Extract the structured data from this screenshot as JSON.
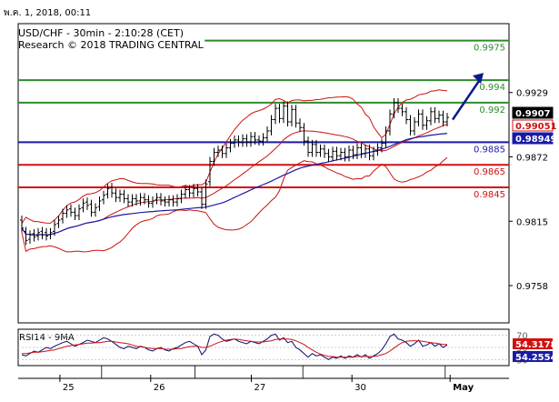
{
  "header": {
    "timestamp": "พ.ค. 1, 2018, 00:11"
  },
  "chart_data": [
    {
      "type": "line",
      "title": "USD/CHF - 30min - 2:10:28 (CET)",
      "subtitle": "Research © 2018 TRADING CENTRAL",
      "ylim": [
        0.9725,
        0.999
      ],
      "y_ticks": [
        "0.9929",
        "0.9872",
        "0.9815",
        "0.9758"
      ],
      "x_ticks": [
        "25",
        "26",
        "27",
        "30",
        "May"
      ],
      "levels": [
        {
          "value": 0.9975,
          "label": "0.9975",
          "color": "#2e8b2e"
        },
        {
          "value": 0.994,
          "label": "0.994",
          "color": "#2e8b2e"
        },
        {
          "value": 0.992,
          "label": "0.992",
          "color": "#2e8b2e"
        },
        {
          "value": 0.9885,
          "label": "0.9885",
          "color": "#1a1aa6"
        },
        {
          "value": 0.9865,
          "label": "0.9865",
          "color": "#d11111"
        },
        {
          "value": 0.9845,
          "label": "0.9845",
          "color": "#d11111"
        }
      ],
      "price_boxes": [
        {
          "label": "0.9907",
          "value": 0.9907,
          "fill": "#000000",
          "text": "#ffffff"
        },
        {
          "label": "0.99051",
          "value": 0.99051,
          "fill": "#ffffff",
          "text": "#d11111"
        },
        {
          "label": "0.98949",
          "value": 0.98949,
          "fill": "#1a1aa6",
          "text": "#ffffff"
        }
      ],
      "candles": [
        [
          0.9816,
          0.9809
        ],
        [
          0.9806,
          0.9798
        ],
        [
          0.9799,
          0.9803
        ],
        [
          0.9804,
          0.9801
        ],
        [
          0.9802,
          0.9805
        ],
        [
          0.9806,
          0.9803
        ],
        [
          0.9805,
          0.9802
        ],
        [
          0.9803,
          0.9805
        ],
        [
          0.9806,
          0.9812
        ],
        [
          0.9813,
          0.9816
        ],
        [
          0.9817,
          0.9822
        ],
        [
          0.9822,
          0.9825
        ],
        [
          0.9826,
          0.9823
        ],
        [
          0.9823,
          0.982
        ],
        [
          0.982,
          0.9826
        ],
        [
          0.9827,
          0.9831
        ],
        [
          0.9832,
          0.9829
        ],
        [
          0.983,
          0.9823
        ],
        [
          0.9823,
          0.9827
        ],
        [
          0.9828,
          0.9833
        ],
        [
          0.9834,
          0.9838
        ],
        [
          0.9839,
          0.9844
        ],
        [
          0.9845,
          0.984
        ],
        [
          0.984,
          0.9836
        ],
        [
          0.9836,
          0.9839
        ],
        [
          0.9839,
          0.9835
        ],
        [
          0.9835,
          0.9832
        ],
        [
          0.9832,
          0.9835
        ],
        [
          0.9835,
          0.9833
        ],
        [
          0.9833,
          0.9836
        ],
        [
          0.9836,
          0.9834
        ],
        [
          0.9834,
          0.9831
        ],
        [
          0.9831,
          0.9833
        ],
        [
          0.9834,
          0.9836
        ],
        [
          0.9836,
          0.9833
        ],
        [
          0.9833,
          0.9832
        ],
        [
          0.9832,
          0.9834
        ],
        [
          0.9834,
          0.9832
        ],
        [
          0.9832,
          0.9835
        ],
        [
          0.9835,
          0.9839
        ],
        [
          0.9839,
          0.9843
        ],
        [
          0.9843,
          0.984
        ],
        [
          0.984,
          0.9844
        ],
        [
          0.9844,
          0.9841
        ],
        [
          0.9841,
          0.983
        ],
        [
          0.983,
          0.9848
        ],
        [
          0.985,
          0.9868
        ],
        [
          0.9868,
          0.9876
        ],
        [
          0.9876,
          0.9878
        ],
        [
          0.9878,
          0.9875
        ],
        [
          0.9875,
          0.988
        ],
        [
          0.988,
          0.9884
        ],
        [
          0.9884,
          0.9887
        ],
        [
          0.9887,
          0.9885
        ],
        [
          0.9885,
          0.9888
        ],
        [
          0.9888,
          0.9885
        ],
        [
          0.9885,
          0.989
        ],
        [
          0.989,
          0.9887
        ],
        [
          0.9887,
          0.9886
        ],
        [
          0.9886,
          0.9889
        ],
        [
          0.9889,
          0.9895
        ],
        [
          0.9895,
          0.9905
        ],
        [
          0.9905,
          0.9915
        ],
        [
          0.9915,
          0.9906
        ],
        [
          0.9906,
          0.9917
        ],
        [
          0.9917,
          0.9903
        ],
        [
          0.9903,
          0.9914
        ],
        [
          0.9914,
          0.9902
        ],
        [
          0.9902,
          0.9898
        ],
        [
          0.9898,
          0.9886
        ],
        [
          0.9886,
          0.9876
        ],
        [
          0.9876,
          0.9883
        ],
        [
          0.9883,
          0.9876
        ],
        [
          0.9876,
          0.9879
        ],
        [
          0.9879,
          0.9875
        ],
        [
          0.9875,
          0.9872
        ],
        [
          0.9872,
          0.9877
        ],
        [
          0.9877,
          0.9873
        ],
        [
          0.9873,
          0.9876
        ],
        [
          0.9876,
          0.9872
        ],
        [
          0.9872,
          0.9878
        ],
        [
          0.9878,
          0.9874
        ],
        [
          0.9874,
          0.988
        ],
        [
          0.988,
          0.9875
        ],
        [
          0.9875,
          0.9879
        ],
        [
          0.9879,
          0.9873
        ],
        [
          0.9873,
          0.9877
        ],
        [
          0.9877,
          0.988
        ],
        [
          0.988,
          0.9884
        ],
        [
          0.9884,
          0.9895
        ],
        [
          0.9895,
          0.991
        ],
        [
          0.991,
          0.992
        ],
        [
          0.992,
          0.9915
        ],
        [
          0.9915,
          0.9912
        ],
        [
          0.9912,
          0.9905
        ],
        [
          0.9905,
          0.9895
        ],
        [
          0.9895,
          0.9903
        ],
        [
          0.9903,
          0.991
        ],
        [
          0.991,
          0.99
        ],
        [
          0.99,
          0.9904
        ],
        [
          0.9904,
          0.9912
        ],
        [
          0.9912,
          0.9906
        ],
        [
          0.9906,
          0.9909
        ],
        [
          0.9909,
          0.9903
        ],
        [
          0.9903,
          0.9907
        ]
      ],
      "rsi": {
        "label": "RSI14 - 9MA",
        "ylim": [
          0,
          100
        ],
        "guides": [
          70,
          50,
          30
        ],
        "boxes": [
          {
            "label": "54.3178",
            "value": 56,
            "fill": "#d11111",
            "text": "#ffffff"
          },
          {
            "label": "54.2554",
            "value": 46,
            "fill": "#1a1aa6",
            "text": "#ffffff"
          }
        ],
        "values": [
          38,
          36,
          40,
          44,
          42,
          46,
          50,
          48,
          52,
          55,
          58,
          60,
          56,
          52,
          55,
          58,
          62,
          60,
          58,
          62,
          66,
          64,
          60,
          55,
          50,
          48,
          52,
          50,
          48,
          52,
          50,
          46,
          44,
          48,
          50,
          46,
          44,
          48,
          50,
          54,
          58,
          60,
          56,
          52,
          38,
          46,
          68,
          72,
          70,
          64,
          60,
          62,
          64,
          60,
          58,
          56,
          60,
          58,
          56,
          60,
          64,
          70,
          72,
          62,
          66,
          58,
          60,
          50,
          46,
          40,
          34,
          40,
          36,
          38,
          34,
          30,
          34,
          32,
          36,
          32,
          36,
          34,
          38,
          34,
          38,
          32,
          36,
          40,
          46,
          56,
          68,
          72,
          64,
          62,
          58,
          52,
          56,
          62,
          52,
          54,
          58,
          52,
          56,
          50,
          54
        ],
        "ma": [
          40,
          40,
          41,
          42,
          42,
          43,
          44,
          45,
          46,
          48,
          50,
          52,
          53,
          54,
          55,
          56,
          57,
          57,
          58,
          58,
          59,
          60,
          60,
          59,
          58,
          57,
          56,
          54,
          52,
          51,
          50,
          49,
          48,
          48,
          48,
          47,
          47,
          47,
          48,
          48,
          50,
          51,
          52,
          52,
          50,
          50,
          52,
          55,
          58,
          60,
          62,
          63,
          64,
          63,
          62,
          61,
          60,
          59,
          59,
          59,
          60,
          61,
          63,
          64,
          64,
          64,
          63,
          61,
          58,
          55,
          50,
          46,
          42,
          39,
          37,
          35,
          35,
          34,
          34,
          34,
          34,
          34,
          35,
          35,
          35,
          35,
          35,
          36,
          38,
          40,
          44,
          49,
          54,
          58,
          60,
          61,
          61,
          61,
          60,
          59,
          58,
          57,
          56,
          55,
          55
        ]
      }
    }
  ]
}
